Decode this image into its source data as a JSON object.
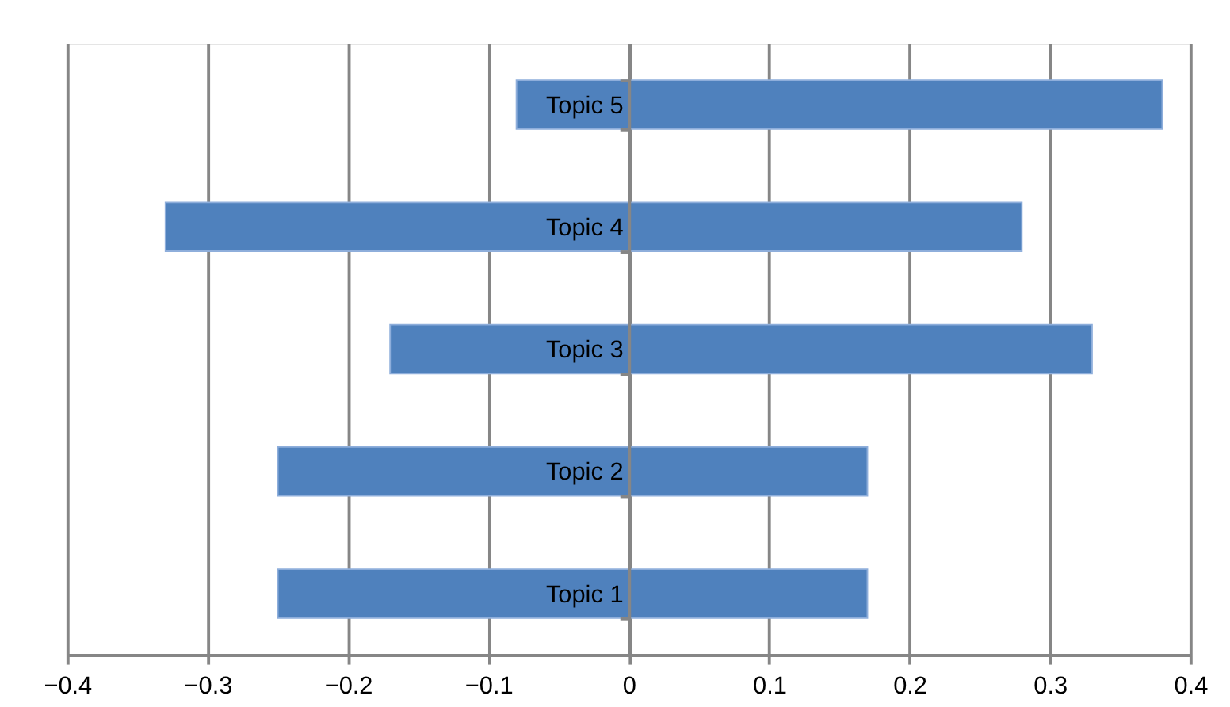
{
  "chart_data": {
    "type": "bar",
    "orientation": "horizontal",
    "categories": [
      "Topic 5",
      "Topic 4",
      "Topic 3",
      "Topic 2",
      "Topic 1"
    ],
    "base": [
      -0.08,
      -0.33,
      -0.17,
      -0.25,
      -0.25
    ],
    "values": [
      0.46,
      0.61,
      0.5,
      0.42,
      0.42
    ],
    "color": "#4f81bd",
    "xlim": [
      -0.4,
      0.4
    ],
    "xticks": [
      {
        "value": -0.4,
        "label": "−0.4"
      },
      {
        "value": -0.3,
        "label": "−0.3"
      },
      {
        "value": -0.2,
        "label": "−0.2"
      },
      {
        "value": -0.1,
        "label": "−0.1"
      },
      0,
      0.1,
      0.2,
      0.3,
      0.4
    ],
    "grid": "x"
  }
}
